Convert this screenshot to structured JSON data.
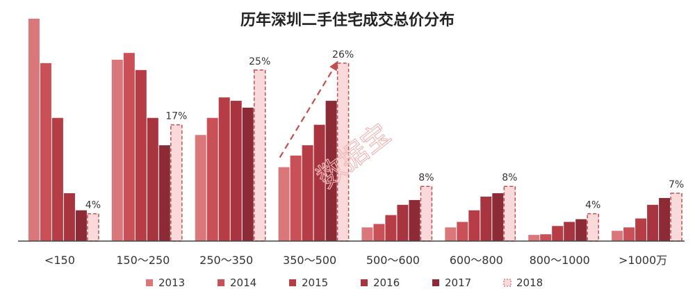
{
  "chart_data": {
    "type": "bar",
    "title": "历年深圳二手住宅成交总价分布",
    "xlabel": "",
    "ylabel": "",
    "unit_suffix": "万",
    "categories": [
      "<150",
      "150～250",
      "250～350",
      "350～500",
      "500～600",
      "600～800",
      "800～1000",
      ">1000万"
    ],
    "ylim": [
      0,
      33
    ],
    "grid": false,
    "legend_position": "bottom",
    "series": [
      {
        "name": "2013",
        "color": "#d9777b",
        "values": [
          32.5,
          26.5,
          15.5,
          10.8,
          2.0,
          2.0,
          0.9,
          1.5
        ]
      },
      {
        "name": "2014",
        "color": "#c95057",
        "values": [
          26.0,
          27.5,
          18.0,
          12.5,
          2.5,
          2.8,
          1.0,
          2.0
        ]
      },
      {
        "name": "2015",
        "color": "#b63d45",
        "values": [
          18.0,
          25.0,
          21.0,
          14.0,
          3.8,
          4.5,
          2.2,
          3.3
        ]
      },
      {
        "name": "2016",
        "color": "#a83440",
        "values": [
          7.0,
          18.0,
          20.5,
          17.0,
          5.3,
          6.5,
          2.8,
          5.3
        ]
      },
      {
        "name": "2017",
        "color": "#8c2a36",
        "values": [
          4.5,
          14.0,
          19.5,
          20.5,
          6.0,
          7.0,
          3.2,
          6.3
        ]
      },
      {
        "name": "2018",
        "color": "#f9d9d9",
        "stroke": "#c0504d",
        "dashed": true,
        "values": [
          4,
          17,
          25,
          26,
          8,
          8,
          4,
          7
        ]
      }
    ],
    "data_labels": [
      "4%",
      "17%",
      "25%",
      "26%",
      "8%",
      "8%",
      "4%",
      "7%"
    ],
    "watermark": "数据宝"
  }
}
